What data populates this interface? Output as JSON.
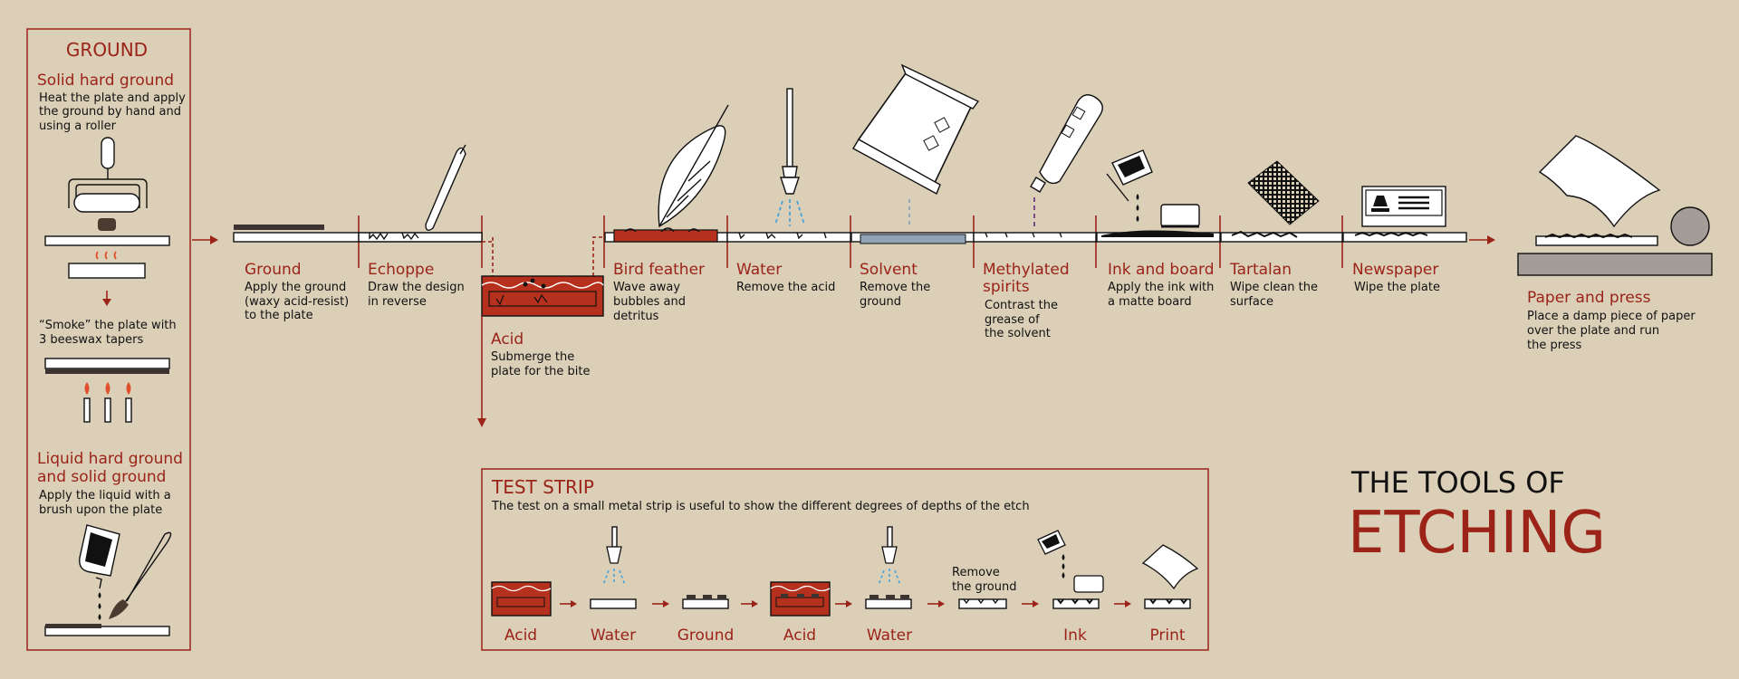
{
  "title": {
    "line1": "THE TOOLS OF",
    "line2": "ETCHING"
  },
  "ground_panel": {
    "heading": "GROUND",
    "solid_title": "Solid hard ground",
    "solid_desc": [
      "Heat the plate and apply",
      "the ground by hand and",
      "using a roller"
    ],
    "smoke_desc": [
      "“Smoke” the plate with",
      "3 beeswax tapers"
    ],
    "liquid_title": [
      "Liquid hard ground",
      "and solid ground"
    ],
    "liquid_desc": [
      "Apply the liquid with a",
      "brush upon the plate"
    ]
  },
  "steps": [
    {
      "label": [
        "Ground"
      ],
      "desc": [
        "Apply the ground",
        "(waxy acid-resist)",
        "to the plate"
      ]
    },
    {
      "label": [
        "Echoppe"
      ],
      "desc": [
        "Draw the design",
        "in reverse"
      ]
    },
    {
      "label": [
        "Acid"
      ],
      "desc": [
        "Submerge the",
        "plate for the bite"
      ]
    },
    {
      "label": [
        "Bird feather"
      ],
      "desc": [
        "Wave away",
        "bubbles and",
        "detritus"
      ]
    },
    {
      "label": [
        "Water"
      ],
      "desc": [
        "Remove the acid"
      ]
    },
    {
      "label": [
        "Solvent"
      ],
      "desc": [
        "Remove the",
        "ground"
      ]
    },
    {
      "label": [
        "Methylated",
        "spirits"
      ],
      "desc": [
        "Contrast the",
        "grease of",
        "the solvent"
      ]
    },
    {
      "label": [
        "Ink and board"
      ],
      "desc": [
        "Apply the ink with",
        "a matte board"
      ]
    },
    {
      "label": [
        "Tartalan"
      ],
      "desc": [
        "Wipe clean the",
        "surface"
      ]
    },
    {
      "label": [
        "Newspaper"
      ],
      "desc": [
        "Wipe the plate"
      ]
    },
    {
      "label": [
        "Paper and press"
      ],
      "desc": [
        "Place a damp piece of paper",
        "over the plate and run",
        "the press"
      ]
    }
  ],
  "test_strip": {
    "heading": "TEST STRIP",
    "desc": "The test on a small metal strip is useful to show the different degrees of depths of the etch",
    "remove_note": [
      "Remove",
      "the ground"
    ],
    "labels": [
      "Acid",
      "Water",
      "Ground",
      "Acid",
      "Water",
      "Ink",
      "Print"
    ]
  },
  "colors": {
    "accent": "#9b2318",
    "background": "#dbcfb8",
    "solvent": "#8fa3b5",
    "spirits": "#7b4a8a",
    "water": "#4aa3d8",
    "flame": "#e0502a"
  }
}
